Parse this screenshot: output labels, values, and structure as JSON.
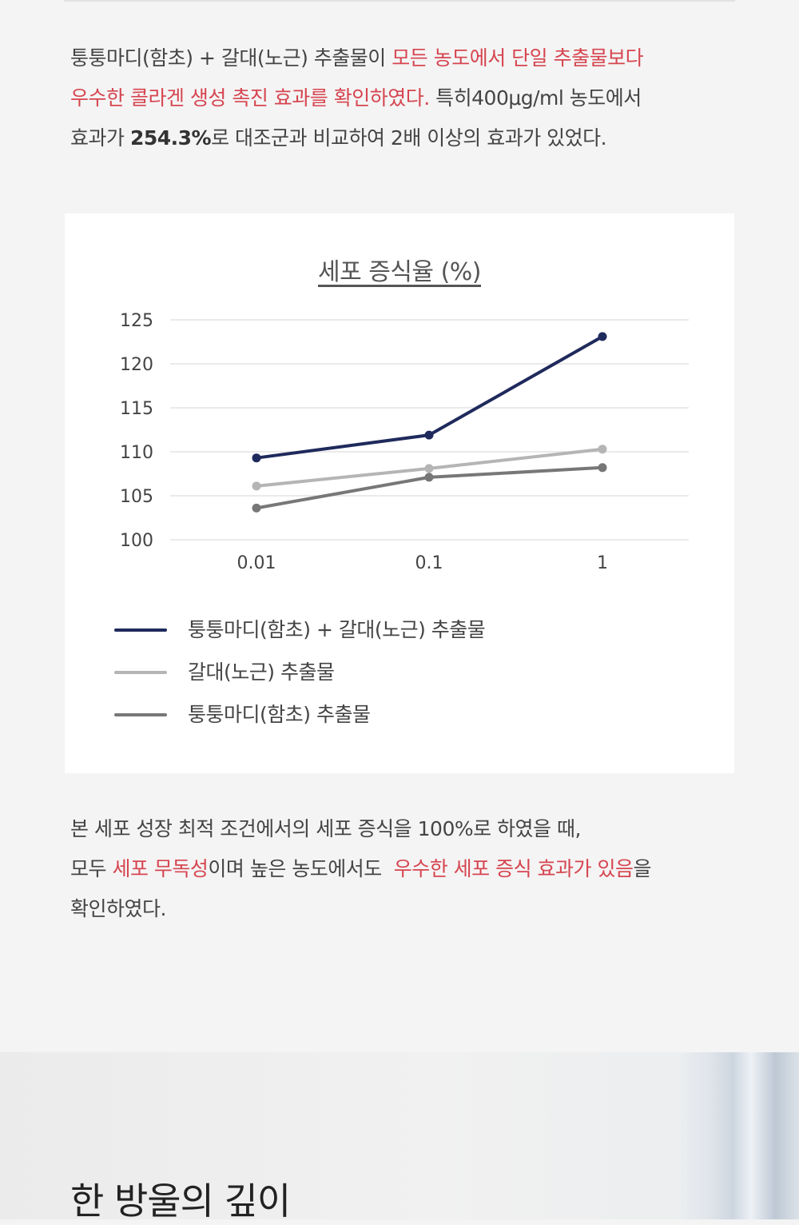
{
  "para1": {
    "l1_plain": "퉁퉁마디(함초) + 갈대(노근) 추출물이 ",
    "l1_hl": "모든 농도에서 단일 추출물보다",
    "l2_hl": "우수한 콜라겐 생성 촉진 효과를 확인하였다.",
    "l2_plain": " 특히400μg/ml 농도에서",
    "l3_a": "효과가 ",
    "l3_bold": "254.3%",
    "l3_b": "로 대조군과 비교하여 2배 이상의 효과가 있었다."
  },
  "chart_data": {
    "type": "line",
    "title": "세포 증식율 (%)",
    "categories": [
      "0.01",
      "0.1",
      "1"
    ],
    "ylim": [
      100,
      125
    ],
    "yticks": [
      100,
      105,
      110,
      115,
      120,
      125
    ],
    "grid": true,
    "legend_position": "bottom-left",
    "series": [
      {
        "name": "퉁퉁마디(함초) + 갈대(노근) 추출물",
        "color": "#1f2a5c",
        "values": [
          109.3,
          111.9,
          123.1
        ]
      },
      {
        "name": "갈대(노근) 추출물",
        "color": "#b5b5b5",
        "values": [
          106.1,
          108.1,
          110.3
        ]
      },
      {
        "name": "퉁퉁마디(함초) 추출물",
        "color": "#777777",
        "values": [
          103.6,
          107.1,
          108.2
        ]
      }
    ]
  },
  "para2": {
    "l1": "본 세포 성장 최적 조건에서의 세포 증식을 100%로 하였을 때,",
    "l2_a": "모두 ",
    "l2_hl1": "세포 무독성",
    "l2_b": "이며 높은 농도에서도  ",
    "l2_hl2": "우수한 세포 증식 효과가 있음",
    "l2_c": "을",
    "l3": "확인하였다."
  },
  "section_heading": "한 방울의 깊이"
}
